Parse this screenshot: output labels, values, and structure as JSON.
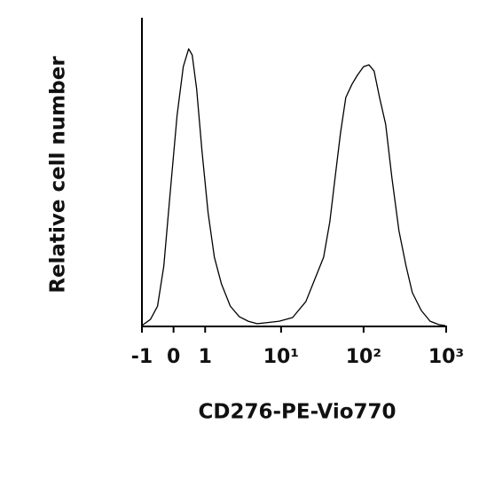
{
  "chart_data": {
    "type": "line",
    "xlabel": "CD276-PE-Vio770",
    "ylabel": "Relative cell number",
    "xscale": "biexponential",
    "xlim": [
      -1,
      1000
    ],
    "xticks": [
      -1,
      0,
      1,
      {
        "value": 10,
        "label": "10¹"
      },
      {
        "value": 100,
        "label": "10²"
      },
      {
        "value": 1000,
        "label": "10³"
      }
    ],
    "ylim": [
      0,
      100
    ],
    "series": [
      {
        "color": "#000000",
        "x": [
          -1,
          -0.689,
          -0.461,
          -0.275,
          -0.099,
          0.099,
          0.275,
          0.434,
          0.544,
          0.689,
          0.878,
          1.12,
          1.4,
          1.77,
          2.33,
          3.04,
          3.94,
          5.08,
          6.52,
          9.49,
          13.8,
          20.0,
          25.6,
          32.8,
          39.0,
          45.2,
          52.5,
          60.9,
          72.4,
          84.0,
          99.9,
          116,
          134,
          156,
          185,
          220,
          268,
          327,
          389,
          499,
          639,
          818,
          973
        ],
        "values": [
          0,
          2.0,
          6.3,
          19.3,
          42.4,
          68.3,
          84.1,
          89.9,
          87.9,
          76.9,
          56.8,
          36.6,
          22.2,
          13.5,
          6.3,
          2.9,
          1.4,
          0.6,
          0.9,
          1.4,
          2.6,
          7.8,
          15.0,
          22.2,
          33.7,
          48.1,
          62.5,
          74.1,
          78.4,
          81.3,
          84.1,
          84.7,
          82.7,
          74.1,
          65.4,
          48.1,
          30.8,
          19.3,
          10.7,
          4.9,
          1.4,
          0.3,
          0
        ]
      }
    ]
  }
}
